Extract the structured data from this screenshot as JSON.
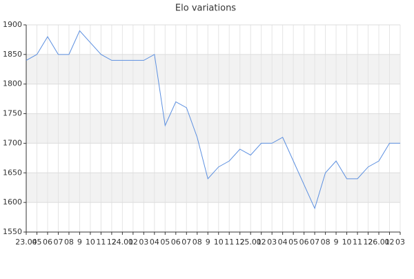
{
  "chart_data": {
    "type": "line",
    "title": "Elo variations",
    "categories": [
      "23.04",
      "05",
      "06",
      "07",
      "08",
      "9",
      "10",
      "11",
      "12",
      "24.01",
      "02",
      "03",
      "04",
      "05",
      "06",
      "07",
      "08",
      "9",
      "10",
      "11",
      "12",
      "25.01",
      "02",
      "03",
      "04",
      "05",
      "06",
      "07",
      "08",
      "9",
      "10",
      "11",
      "12",
      "26.01",
      "02",
      "03"
    ],
    "series": [
      {
        "name": "Elo",
        "color": "#5b8fe0",
        "values": [
          1840,
          1850,
          1880,
          1850,
          1850,
          1890,
          1870,
          1850,
          1840,
          1840,
          1840,
          1840,
          1850,
          1730,
          1770,
          1760,
          1710,
          1640,
          1660,
          1670,
          1690,
          1680,
          1700,
          1700,
          1710,
          1670,
          1630,
          1590,
          1650,
          1670,
          1640,
          1640,
          1660,
          1670,
          1700,
          1700
        ]
      }
    ],
    "ylim": [
      1550,
      1900
    ],
    "yticks": [
      1550,
      1600,
      1650,
      1700,
      1750,
      1800,
      1850,
      1900
    ],
    "grid": true
  }
}
